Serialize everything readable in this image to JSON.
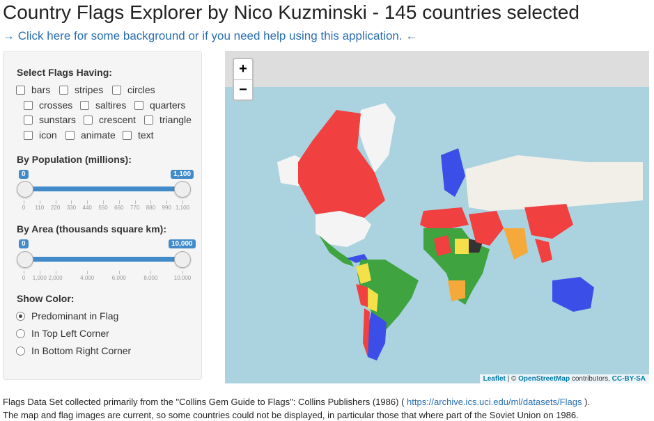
{
  "header": {
    "title": "Country Flags Explorer by Nico Kuzminski - 145 countries selected",
    "help_link": "→ Click here for some background or if you need help using this application. ←"
  },
  "sidebar": {
    "flags_label": "Select Flags Having:",
    "flag_options": [
      "bars",
      "stripes",
      "circles",
      "crosses",
      "saltires",
      "quarters",
      "sunstars",
      "crescent",
      "triangle",
      "icon",
      "animate",
      "text"
    ],
    "population": {
      "label": "By Population (millions):",
      "min_badge": "0",
      "max_badge": "1,100",
      "ticks": [
        "0",
        "110",
        "220",
        "330",
        "440",
        "550",
        "660",
        "770",
        "880",
        "990",
        "1,100"
      ]
    },
    "area": {
      "label": "By Area (thousands square km):",
      "min_badge": "0",
      "max_badge": "10,000",
      "ticks": [
        "0",
        "1,000",
        "2,000",
        "4,000",
        "6,000",
        "8,000",
        "10,000"
      ]
    },
    "color": {
      "label": "Show Color:",
      "options": [
        "Predominant in Flag",
        "In Top Left Corner",
        "In Bottom Right Corner"
      ],
      "selected": "Predominant in Flag"
    }
  },
  "map": {
    "zoom_in": "+",
    "zoom_out": "−",
    "attribution": {
      "leaflet": "Leaflet",
      "sep": " | © ",
      "osm": "OpenStreetMap",
      "contributors": " contributors, ",
      "license": "CC-BY-SA"
    },
    "colors": {
      "red": "#f04040",
      "blue": "#3b4fe8",
      "green": "#3fa33f",
      "yellow": "#f5e04a",
      "orange": "#f5a93a",
      "white": "#f4f4f4",
      "black": "#333333",
      "sea": "#aad3df",
      "land": "#f2efe9"
    }
  },
  "footer": {
    "line1_pre": "Flags Data Set collected primarily from the \"Collins Gem Guide to Flags\": Collins Publishers (1986) ( ",
    "line1_link": "https://archive.ics.uci.edu/ml/datasets/Flags",
    "line1_post": " ).",
    "line2": "The map and flag images are current, so some countries could not be displayed, in particular those that where part of the Soviet Union on 1986."
  }
}
